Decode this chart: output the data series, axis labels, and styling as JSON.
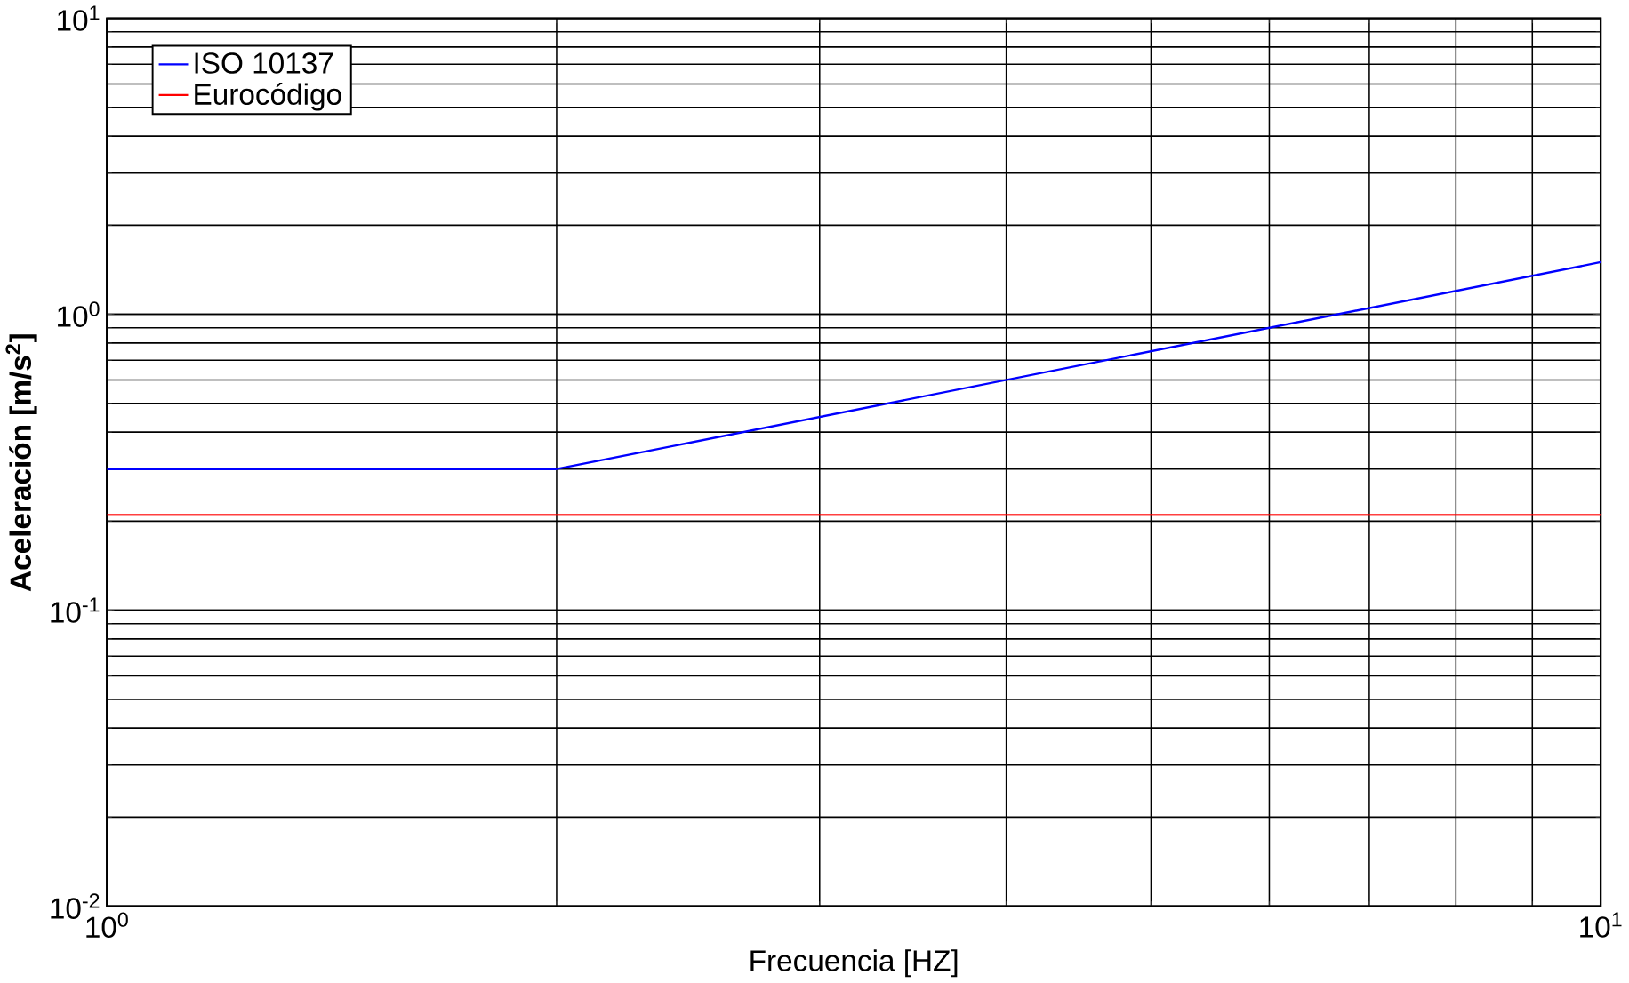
{
  "chart_data": {
    "type": "line",
    "xlabel": "Frecuencia [HZ]",
    "ylabel": "Aceleración [m/s$^{2}$]",
    "series": [
      {
        "name": "ISO 10137",
        "color": "#0000ff",
        "x": [
          1,
          2,
          10
        ],
        "values": [
          0.3,
          0.3,
          1.5
        ]
      },
      {
        "name": "Eurocódigo",
        "color": "#ff0000",
        "x": [
          1,
          10
        ],
        "values": [
          0.21,
          0.21
        ]
      }
    ],
    "xlim": [
      1,
      10
    ],
    "ylim": [
      0.01,
      10
    ],
    "log": "xy",
    "grid": true,
    "legend": "top left",
    "xticks": [
      {
        "value": 1,
        "label": "10$^{0}$"
      },
      {
        "value": 10,
        "label": "10$^{1}$"
      }
    ],
    "yticks": [
      {
        "value": 0.01,
        "label": "10$^{-2}$"
      },
      {
        "value": 0.1,
        "label": "10$^{-1}$"
      },
      {
        "value": 1,
        "label": "10$^{0}$"
      },
      {
        "value": 10,
        "label": "10$^{1}$"
      }
    ]
  }
}
